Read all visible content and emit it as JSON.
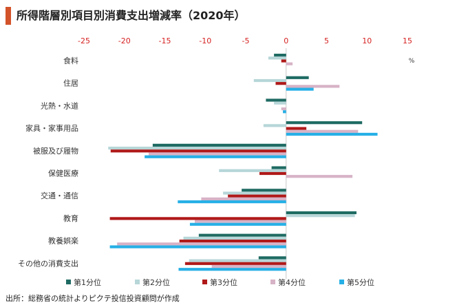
{
  "page": {
    "title": "所得階層別項目別消費支出増減率（2020年）",
    "source": "出所：総務省の統計よりピクテ投信投資顧問が作成",
    "accent": "#d2522a"
  },
  "chart_data": {
    "type": "bar",
    "orientation": "horizontal",
    "title": "所得階層別項目別消費支出増減率（2020年）",
    "unit_label": "%",
    "xlim": [
      -25,
      15
    ],
    "xticks": [
      -25,
      -20,
      -15,
      -10,
      -5,
      0,
      5,
      10,
      15
    ],
    "xtick_labels": [
      "-25",
      "-20",
      "-15",
      "-10",
      "-5",
      "0",
      "5",
      "10",
      "15"
    ],
    "tick_color": "#d62020",
    "legend_position": "bottom",
    "categories": [
      "食料",
      "住居",
      "光熱・水道",
      "家具・家事用品",
      "被服及び履物",
      "保健医療",
      "交通・通信",
      "教育",
      "教養娯楽",
      "その他の消費支出"
    ],
    "series": [
      {
        "name": "第1分位",
        "color": "#1f6b63",
        "values": [
          -1.5,
          2.8,
          -2.5,
          9.4,
          -16.5,
          -1.8,
          -5.5,
          8.7,
          -10.8,
          -3.4
        ]
      },
      {
        "name": "第2分位",
        "color": "#b7d6d8",
        "values": [
          -2.2,
          -4.0,
          -1.5,
          -2.8,
          -22.0,
          -8.3,
          -7.8,
          8.5,
          -12.7,
          -12.0
        ]
      },
      {
        "name": "第3分位",
        "color": "#b01919",
        "values": [
          -0.6,
          -1.3,
          0.0,
          2.5,
          -21.7,
          -3.3,
          -7.2,
          -21.8,
          -13.2,
          -12.5
        ]
      },
      {
        "name": "第4分位",
        "color": "#d7b3c7",
        "values": [
          0.8,
          6.6,
          -0.6,
          8.9,
          -17.0,
          8.2,
          -10.5,
          -11.3,
          -20.9,
          -9.2
        ]
      },
      {
        "name": "第5分位",
        "color": "#27b0e6",
        "values": [
          0.0,
          3.4,
          -0.4,
          11.3,
          -17.5,
          0.0,
          -13.4,
          -11.9,
          -21.8,
          -13.3
        ]
      }
    ]
  }
}
